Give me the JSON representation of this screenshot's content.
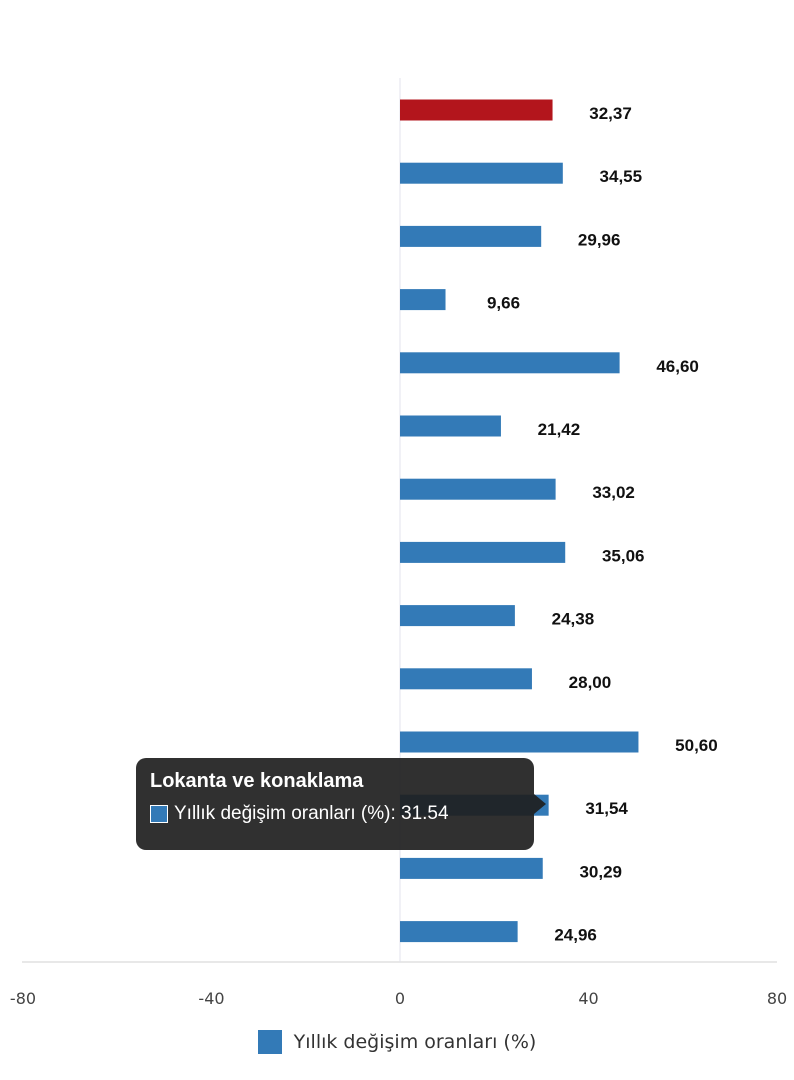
{
  "chart_data": {
    "type": "bar",
    "orientation": "horizontal",
    "series": [
      {
        "name": "Yıllık değişim oranları (%)",
        "values": [
          32.37,
          34.55,
          29.96,
          9.66,
          46.6,
          21.42,
          33.02,
          35.06,
          24.38,
          28.0,
          50.6,
          31.54,
          30.29,
          24.96
        ],
        "value_labels": [
          "32,37",
          "34,55",
          "29,96",
          "9,66",
          "46,60",
          "21,42",
          "33,02",
          "35,06",
          "24,38",
          "28,00",
          "50,60",
          "31,54",
          "30,29",
          "24,96"
        ]
      }
    ],
    "highlight_index": 0,
    "colors": {
      "bar": "#337ab7",
      "highlight": "#b3151c"
    },
    "xlim": [
      -80,
      80
    ],
    "x_ticks": [
      "-80",
      "-40",
      "0",
      "40",
      "80"
    ],
    "grid": false,
    "legend": "bottom-center"
  },
  "legend": {
    "label": "Yıllık değişim oranları (%)"
  },
  "tooltip": {
    "title": "Lokanta ve konaklama",
    "text": "Yıllık değişim oranları (%): 31.54"
  }
}
